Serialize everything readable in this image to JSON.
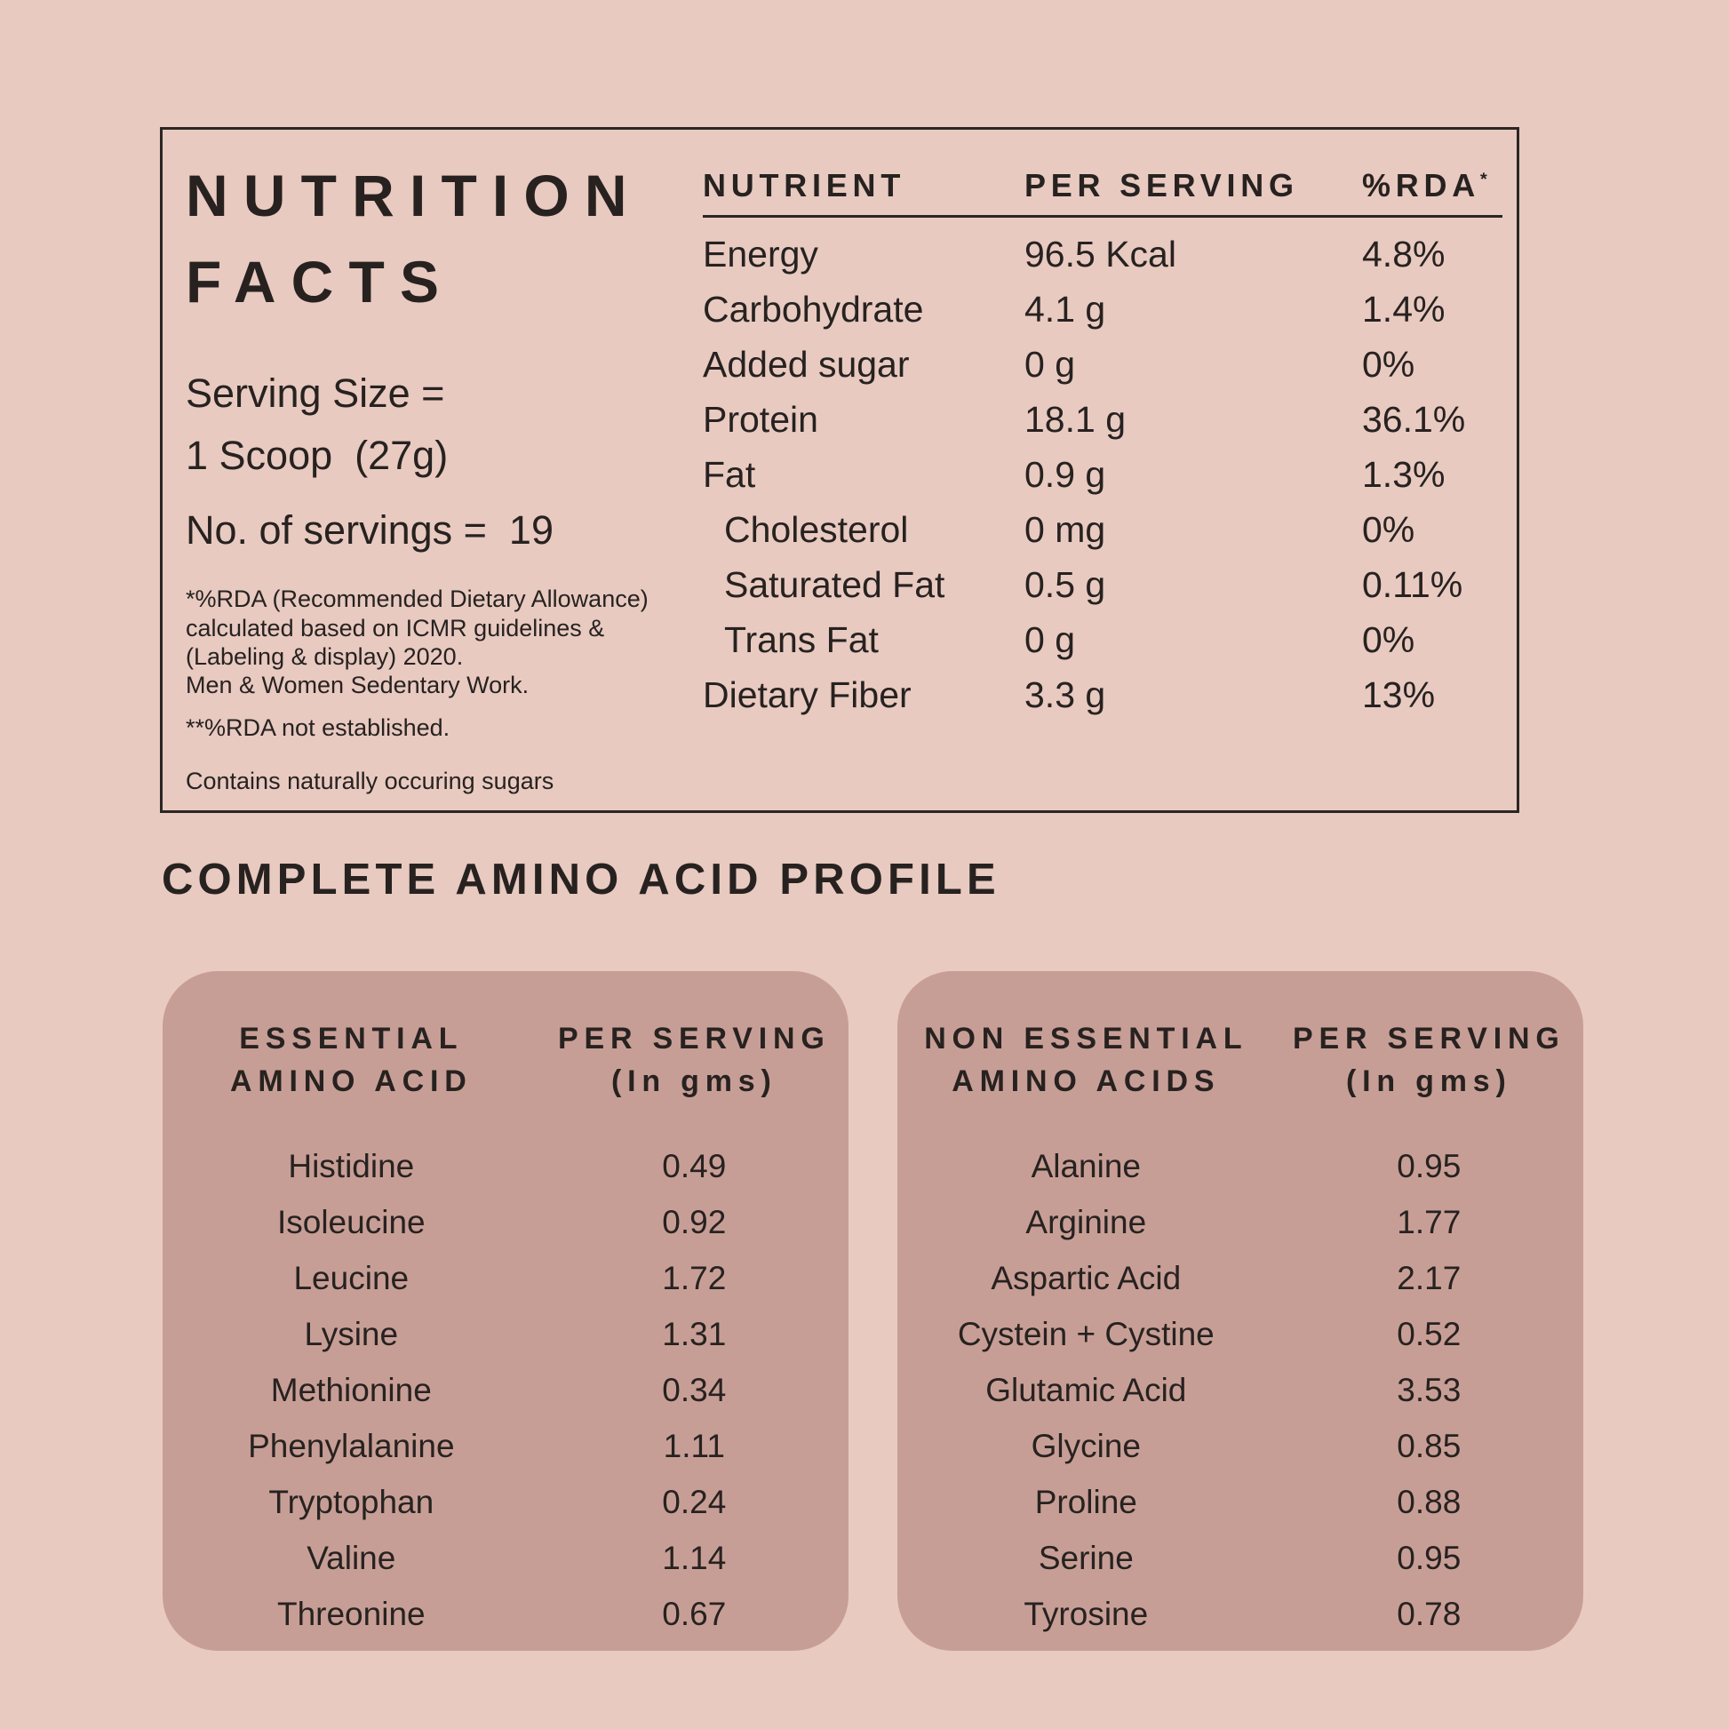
{
  "colors": {
    "page_background": "#e8cac1",
    "panel_background": "#c79e96",
    "text": "#272220",
    "border": "#2b2623"
  },
  "facts_box": {
    "title_line1": "NUTRITION",
    "title_line2": "FACTS",
    "serving": {
      "line1": "Serving Size =",
      "line2": "1 Scoop  (27g)",
      "line3": "No. of servings =  19"
    },
    "footnote_rda_lines": [
      "*%RDA (Recommended Dietary Allowance)",
      "calculated based on ICMR guidelines &",
      "(Labeling & display) 2020.",
      "Men & Women Sedentary Work."
    ],
    "footnote_not_established": "**%RDA not established.",
    "footnote_sugars": "Contains naturally occuring sugars",
    "table": {
      "header_nutrient": "NUTRIENT",
      "header_per_serving": "PER SERVING",
      "header_rda": "%RDA",
      "header_rda_mark": "*",
      "rows": [
        {
          "label": "Energy",
          "value": "96.5 Kcal",
          "rda": "4.8%",
          "indent": false
        },
        {
          "label": "Carbohydrate",
          "value": "4.1 g",
          "rda": "1.4%",
          "indent": false
        },
        {
          "label": "Added sugar",
          "value": "0 g",
          "rda": "0%",
          "indent": false
        },
        {
          "label": "Protein",
          "value": "18.1 g",
          "rda": "36.1%",
          "indent": false
        },
        {
          "label": "Fat",
          "value": "0.9 g",
          "rda": "1.3%",
          "indent": false
        },
        {
          "label": "Cholesterol",
          "value": "0 mg",
          "rda": "0%",
          "indent": true
        },
        {
          "label": "Saturated Fat",
          "value": "0.5 g",
          "rda": "0.11%",
          "indent": true
        },
        {
          "label": "Trans Fat",
          "value": "0 g",
          "rda": "0%",
          "indent": true
        },
        {
          "label": "Dietary Fiber",
          "value": "3.3 g",
          "rda": "13%",
          "indent": false
        }
      ]
    }
  },
  "amino_section": {
    "heading": "COMPLETE AMINO ACID PROFILE",
    "essential": {
      "header_col1_line1": "ESSENTIAL",
      "header_col1_line2": "AMINO ACID",
      "header_col2_line1": "PER SERVING",
      "header_col2_line2": "(In gms)",
      "rows": [
        {
          "name": "Histidine",
          "value": "0.49"
        },
        {
          "name": "Isoleucine",
          "value": "0.92"
        },
        {
          "name": "Leucine",
          "value": "1.72"
        },
        {
          "name": "Lysine",
          "value": "1.31"
        },
        {
          "name": "Methionine",
          "value": "0.34"
        },
        {
          "name": "Phenylalanine",
          "value": "1.11"
        },
        {
          "name": "Tryptophan",
          "value": "0.24"
        },
        {
          "name": "Valine",
          "value": "1.14"
        },
        {
          "name": "Threonine",
          "value": "0.67"
        }
      ]
    },
    "non_essential": {
      "header_col1_line1": "NON ESSENTIAL",
      "header_col1_line2": "AMINO ACIDS",
      "header_col2_line1": "PER SERVING",
      "header_col2_line2": "(In gms)",
      "rows": [
        {
          "name": "Alanine",
          "value": "0.95"
        },
        {
          "name": "Arginine",
          "value": "1.77"
        },
        {
          "name": "Aspartic Acid",
          "value": "2.17"
        },
        {
          "name": "Cystein + Cystine",
          "value": "0.52"
        },
        {
          "name": "Glutamic Acid",
          "value": "3.53"
        },
        {
          "name": "Glycine",
          "value": "0.85"
        },
        {
          "name": "Proline",
          "value": "0.88"
        },
        {
          "name": "Serine",
          "value": "0.95"
        },
        {
          "name": "Tyrosine",
          "value": "0.78"
        }
      ]
    }
  }
}
